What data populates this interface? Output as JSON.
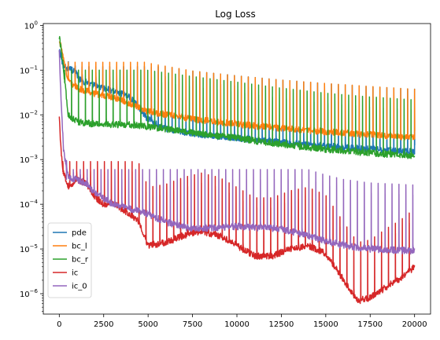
{
  "chart_data": {
    "type": "line",
    "title": "Log Loss",
    "xlabel": "",
    "ylabel": "",
    "yscale": "log",
    "xlim": [
      -900,
      20900
    ],
    "ylim": [
      3.5e-07,
      1.1
    ],
    "x_ticks": [
      0,
      2500,
      5000,
      7500,
      10000,
      12500,
      15000,
      17500,
      20000
    ],
    "x_tick_labels": [
      "0",
      "2500",
      "5000",
      "7500",
      "10000",
      "12500",
      "15000",
      "17500",
      "20000"
    ],
    "y_ticks": [
      1e-06,
      1e-05,
      0.0001,
      0.001,
      0.01,
      0.1,
      1
    ],
    "y_tick_labels": [
      {
        "base": "10",
        "exp": "−6"
      },
      {
        "base": "10",
        "exp": "−5"
      },
      {
        "base": "10",
        "exp": "−4"
      },
      {
        "base": "10",
        "exp": "−3"
      },
      {
        "base": "10",
        "exp": "−2"
      },
      {
        "base": "10",
        "exp": "−1"
      },
      {
        "base": "10",
        "exp": "0"
      }
    ],
    "legend_position": "lower-left",
    "grid": false,
    "series": [
      {
        "name": "pde",
        "color": "#1f77b4",
        "x": [
          0,
          200,
          500,
          800,
          1200,
          2000,
          3000,
          4000,
          5000,
          6000,
          7500,
          10000,
          12500,
          15000,
          17500,
          20000
        ],
        "y": [
          0.3,
          0.12,
          0.11,
          0.1,
          0.06,
          0.045,
          0.035,
          0.025,
          0.008,
          0.0048,
          0.0038,
          0.003,
          0.0024,
          0.002,
          0.0017,
          0.0015
        ],
        "spikes": {
          "start": 500,
          "end": 20000,
          "step": 390,
          "peak_factor": 25,
          "max": 0.12
        }
      },
      {
        "name": "bc_l",
        "color": "#ff7f0e",
        "x": [
          0,
          200,
          500,
          1000,
          2000,
          3000,
          4000,
          5000,
          7500,
          10000,
          12500,
          15000,
          17500,
          20000
        ],
        "y": [
          0.5,
          0.2,
          0.06,
          0.04,
          0.03,
          0.025,
          0.018,
          0.012,
          0.008,
          0.0062,
          0.005,
          0.0042,
          0.0036,
          0.0031
        ],
        "spikes": {
          "start": 500,
          "end": 20000,
          "step": 390,
          "peak_factor": 12,
          "max": 0.15
        }
      },
      {
        "name": "bc_r",
        "color": "#2ca02c",
        "x": [
          0,
          200,
          500,
          1000,
          2000,
          3000,
          4000,
          5000,
          7500,
          10000,
          12500,
          15000,
          17500,
          20000
        ],
        "y": [
          0.55,
          0.15,
          0.01,
          0.007,
          0.0062,
          0.006,
          0.006,
          0.0055,
          0.004,
          0.003,
          0.0022,
          0.0017,
          0.0014,
          0.0012
        ],
        "spikes": {
          "start": 300,
          "end": 20000,
          "step": 390,
          "peak_factor": 18,
          "max": 0.1
        }
      },
      {
        "name": "ic",
        "color": "#d62728",
        "x": [
          0,
          80,
          200,
          500,
          1000,
          1500,
          2000,
          2500,
          3000,
          3500,
          4000,
          4500,
          5000,
          6000,
          7000,
          8000,
          9000,
          10000,
          11000,
          12000,
          13000,
          14000,
          15000,
          16000,
          16800,
          17500,
          18500,
          19200,
          20000
        ],
        "y": [
          0.01,
          0.002,
          0.0006,
          0.00025,
          0.00035,
          0.0003,
          0.00015,
          0.0001,
          0.00011,
          8e-05,
          6e-05,
          4e-05,
          1.2e-05,
          1.4e-05,
          2e-05,
          2.5e-05,
          2e-05,
          1.2e-05,
          7e-06,
          7e-06,
          1e-05,
          1.2e-05,
          8e-06,
          2e-06,
          7e-07,
          8e-07,
          1.5e-06,
          2.2e-06,
          4e-06
        ],
        "spikes": {
          "start": 200,
          "end": 20000,
          "step": 390,
          "peak_factor": 20,
          "max": 0.0009
        }
      },
      {
        "name": "ic_0",
        "color": "#9467bd",
        "x": [
          0,
          100,
          250,
          500,
          1000,
          1500,
          2000,
          3000,
          4000,
          5000,
          6000,
          7500,
          10000,
          12500,
          14000,
          15000,
          16000,
          17500,
          20000
        ],
        "y": [
          0.3,
          0.02,
          0.0015,
          0.0004,
          0.00035,
          0.0003,
          0.00018,
          0.0001,
          8e-05,
          6e-05,
          4e-05,
          2.8e-05,
          3.2e-05,
          2.8e-05,
          2e-05,
          1.5e-05,
          1.2e-05,
          1e-05,
          9e-06
        ],
        "spikes": {
          "start": 400,
          "end": 20000,
          "step": 390,
          "peak_factor": 30,
          "max": 0.0006
        }
      }
    ]
  }
}
